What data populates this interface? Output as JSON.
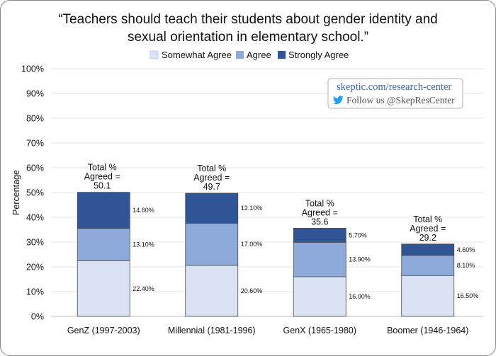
{
  "chart_data": {
    "type": "bar",
    "stacked": true,
    "title_lines": [
      "“Teachers should teach their students about gender identity and",
      "sexual orientation in elementary school.”"
    ],
    "ylabel": "Percentage",
    "xlabel": "",
    "ylim": [
      0,
      100
    ],
    "y_ticks": [
      0,
      10,
      20,
      30,
      40,
      50,
      60,
      70,
      80,
      90,
      100
    ],
    "y_tick_labels": [
      "0%",
      "10%",
      "20%",
      "30%",
      "40%",
      "50%",
      "60%",
      "70%",
      "80%",
      "90%",
      "100%"
    ],
    "categories": [
      "GenZ (1997-2003)",
      "Millennial (1981-1996)",
      "GenX (1965-1980)",
      "Boomer (1946-1964)"
    ],
    "series": [
      {
        "name": "Somewhat Agree",
        "color": "#dae3f3",
        "values": [
          22.4,
          20.6,
          16.0,
          16.5
        ],
        "labels": [
          "22.40%",
          "20.60%",
          "16.00%",
          "16.50%"
        ]
      },
      {
        "name": "Agree",
        "color": "#8eaadb",
        "values": [
          13.1,
          17.0,
          13.9,
          8.1
        ],
        "labels": [
          "13.10%",
          "17.00%",
          "13.90%",
          "8.10%"
        ]
      },
      {
        "name": "Strongly Agree",
        "color": "#2f5597",
        "values": [
          14.6,
          12.1,
          5.7,
          4.6
        ],
        "labels": [
          "14.60%",
          "12.10%",
          "5.70%",
          "4.60%"
        ]
      }
    ],
    "totals": [
      {
        "line1": "Total %",
        "line2": "Agreed =",
        "line3": "50.1"
      },
      {
        "line1": "Total %",
        "line2": "Agreed =",
        "line3": "49.7"
      },
      {
        "line1": "Total %",
        "line2": "Agreed =",
        "line3": "35.6"
      },
      {
        "line1": "Total %",
        "line2": "Agreed =",
        "line3": "29.2"
      }
    ],
    "grid": true,
    "legend_position": "top-center"
  },
  "watermark": {
    "site": "skeptic.com/research-center",
    "follow": "Follow us @SkepResCenter",
    "icon": "twitter-bird-icon",
    "icon_color": "#1da1f2"
  }
}
